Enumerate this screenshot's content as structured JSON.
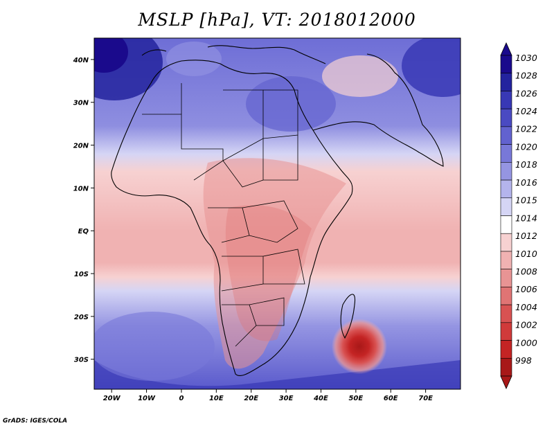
{
  "title": "MSLP [hPa], VT: 2018012000",
  "credit": "GrADS: IGES/COLA",
  "map": {
    "lon_range": [
      -25,
      80
    ],
    "lat_range": [
      -37,
      45
    ],
    "lon_ticks": [
      "20W",
      "10W",
      "0",
      "10E",
      "20E",
      "30E",
      "40E",
      "50E",
      "60E",
      "70E"
    ],
    "lon_tick_values": [
      -20,
      -10,
      0,
      10,
      20,
      30,
      40,
      50,
      60,
      70
    ],
    "lat_ticks": [
      "40N",
      "30N",
      "20N",
      "10N",
      "EQ",
      "10S",
      "20S",
      "30S"
    ],
    "lat_tick_values": [
      40,
      30,
      20,
      10,
      0,
      -10,
      -20,
      -30
    ],
    "low_center": {
      "label": "low pressure centre",
      "lon": 51,
      "lat": -27,
      "value": 998
    }
  },
  "colorbar": {
    "levels": [
      "1030",
      "1028",
      "1026",
      "1024",
      "1022",
      "1020",
      "1018",
      "1016",
      "1015",
      "1014",
      "1012",
      "1010",
      "1008",
      "1006",
      "1004",
      "1002",
      "1000",
      "998"
    ],
    "colors": [
      "#1a0a8c",
      "#23239e",
      "#3838b5",
      "#4a4ac2",
      "#6262cf",
      "#7878d8",
      "#9595e2",
      "#b4b4ec",
      "#d5d5f5",
      "#ffffff",
      "#f7d1d1",
      "#f0b2b2",
      "#e89494",
      "#e07474",
      "#d85252",
      "#d03a3a",
      "#c42424",
      "#a81818"
    ]
  }
}
